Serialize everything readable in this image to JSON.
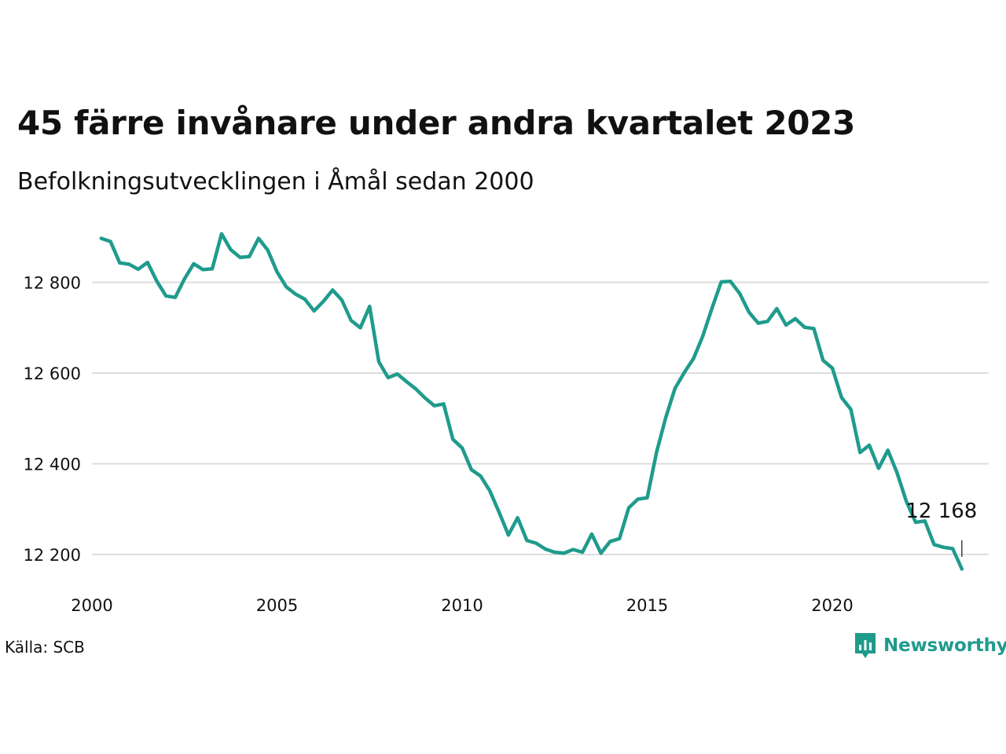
{
  "header": {
    "title": "45 färre invånare under andra kvartalet 2023",
    "subtitle": "Befolkningsutvecklingen i Åmål sedan 2000"
  },
  "footer": {
    "source": "Källa: SCB",
    "brand": "Newsworthy",
    "brand_icon": "newsworthy-logo-icon"
  },
  "colors": {
    "line": "#1f9b8c",
    "grid": "#dddddd",
    "text": "#111111",
    "background": "#ffffff"
  },
  "chart_data": {
    "type": "line",
    "title": "45 färre invånare under andra kvartalet 2023",
    "subtitle": "Befolkningsutvecklingen i Åmål sedan 2000",
    "xlabel": "",
    "ylabel": "",
    "x_ticks": [
      "2000",
      "2005",
      "2010",
      "2015",
      "2020"
    ],
    "y_ticks": [
      "12 200",
      "12 400",
      "12 600",
      "12 800"
    ],
    "y_tick_values": [
      12200,
      12400,
      12600,
      12800
    ],
    "xlim": [
      2000,
      2023.5
    ],
    "ylim": [
      12140,
      12960
    ],
    "grid": "horizontal",
    "annotation": {
      "label": "12 168",
      "value": 12168
    },
    "series": [
      {
        "values": [
          12897,
          12890,
          12843,
          12840,
          12829,
          12844,
          12803,
          12770,
          12767,
          12808,
          12841,
          12828,
          12830,
          12907,
          12872,
          12855,
          12857,
          12897,
          12871,
          12823,
          12790,
          12774,
          12763,
          12737,
          12758,
          12783,
          12761,
          12716,
          12700,
          12747,
          12625,
          12590,
          12598,
          12581,
          12565,
          12545,
          12528,
          12532,
          12454,
          12435,
          12387,
          12373,
          12340,
          12293,
          12243,
          12281,
          12231,
          12225,
          12212,
          12205,
          12203,
          12211,
          12205,
          12245,
          12203,
          12229,
          12235,
          12303,
          12322,
          12325,
          12425,
          12502,
          12566,
          12601,
          12632,
          12681,
          12743,
          12801,
          12802,
          12775,
          12734,
          12710,
          12714,
          12742,
          12706,
          12720,
          12701,
          12698,
          12628,
          12611,
          12546,
          12520,
          12425,
          12441,
          12390,
          12430,
          12380,
          12317,
          12271,
          12274,
          12222,
          12216,
          12213,
          12168
        ],
        "x_start": 2000.25,
        "x_step": 0.25
      }
    ]
  }
}
